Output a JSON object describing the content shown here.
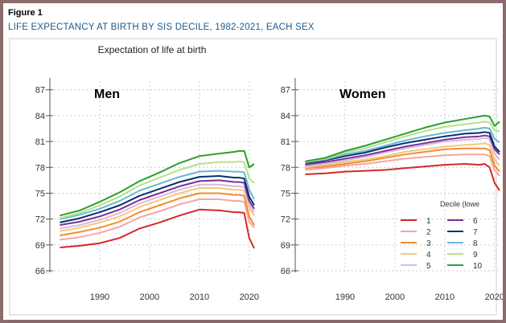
{
  "figure_label": "Figure 1",
  "figure_title": "LIFE EXPECTANCY AT BIRTH BY SIS DECILE, 1982-2021, EACH SEX",
  "chart_data": {
    "type": "line",
    "title": "Expectation of life at birth",
    "ylabel": "Expectation of life at birth",
    "xlabel": "",
    "xlim": [
      1980,
      2021
    ],
    "ylim": [
      66,
      88
    ],
    "yticks": [
      66,
      69,
      72,
      75,
      78,
      81,
      84,
      87
    ],
    "xticks": [
      1990,
      2000,
      2010,
      2020
    ],
    "legend_title": "Decile (lowe",
    "colors": [
      "#d62728",
      "#f4a6a6",
      "#f28e2b",
      "#f6c87a",
      "#d9b8e6",
      "#7b3294",
      "#08306b",
      "#6bb7d6",
      "#b8e08a",
      "#2ca02c"
    ],
    "panels": [
      {
        "name": "Men",
        "years": [
          1982,
          1986,
          1990,
          1994,
          1998,
          2002,
          2006,
          2010,
          2014,
          2017,
          2018,
          2019,
          2020,
          2021
        ],
        "series": [
          {
            "name": "1",
            "values": [
              68.7,
              68.9,
              69.2,
              69.8,
              70.9,
              71.6,
              72.4,
              73.1,
              73.0,
              72.8,
              72.8,
              72.7,
              69.8,
              68.6
            ]
          },
          {
            "name": "2",
            "values": [
              69.6,
              69.9,
              70.4,
              71.1,
              72.2,
              72.9,
              73.7,
              74.3,
              74.3,
              74.1,
              74.1,
              74.0,
              71.7,
              71.0
            ]
          },
          {
            "name": "3",
            "values": [
              70.1,
              70.5,
              71.0,
              71.7,
              72.8,
              73.6,
              74.4,
              75.0,
              75.0,
              74.8,
              74.8,
              74.7,
              72.3,
              71.3
            ]
          },
          {
            "name": "4",
            "values": [
              70.6,
              71.0,
              71.6,
              72.3,
              73.4,
              74.2,
              75.0,
              75.6,
              75.6,
              75.4,
              75.4,
              75.3,
              73.3,
              72.4
            ]
          },
          {
            "name": "5",
            "values": [
              70.9,
              71.3,
              71.9,
              72.7,
              73.8,
              74.6,
              75.4,
              76.0,
              76.0,
              75.8,
              75.8,
              75.7,
              73.7,
              72.8
            ]
          },
          {
            "name": "6",
            "values": [
              71.3,
              71.7,
              72.3,
              73.1,
              74.2,
              75.0,
              75.8,
              76.4,
              76.5,
              76.3,
              76.3,
              76.2,
              74.1,
              73.2
            ]
          },
          {
            "name": "7",
            "values": [
              71.6,
              72.1,
              72.8,
              73.6,
              74.7,
              75.5,
              76.3,
              76.9,
              77.0,
              76.8,
              76.8,
              76.7,
              74.6,
              73.6
            ]
          },
          {
            "name": "8",
            "values": [
              72.0,
              72.5,
              73.2,
              74.1,
              75.3,
              76.1,
              76.9,
              77.5,
              77.6,
              77.5,
              77.5,
              77.4,
              75.4,
              74.3
            ]
          },
          {
            "name": "9",
            "values": [
              72.1,
              72.7,
              73.6,
              74.6,
              75.9,
              76.8,
              77.7,
              78.4,
              78.6,
              78.6,
              78.7,
              78.6,
              76.7,
              76.2
            ]
          },
          {
            "name": "10",
            "values": [
              72.4,
              73.0,
              74.0,
              75.1,
              76.4,
              77.4,
              78.5,
              79.3,
              79.6,
              79.8,
              79.9,
              79.9,
              78.0,
              78.4
            ]
          }
        ]
      },
      {
        "name": "Women",
        "years": [
          1982,
          1986,
          1990,
          1994,
          1998,
          2002,
          2006,
          2010,
          2014,
          2017,
          2018,
          2019,
          2020,
          2021
        ],
        "series": [
          {
            "name": "1",
            "values": [
              77.2,
              77.3,
              77.5,
              77.6,
              77.7,
              77.9,
              78.1,
              78.3,
              78.4,
              78.3,
              78.4,
              78.0,
              76.2,
              75.3
            ]
          },
          {
            "name": "2",
            "values": [
              77.7,
              77.9,
              78.2,
              78.4,
              78.7,
              79.0,
              79.2,
              79.4,
              79.5,
              79.5,
              79.5,
              79.3,
              77.7,
              77.0
            ]
          },
          {
            "name": "3",
            "values": [
              77.9,
              78.1,
              78.4,
              78.7,
              79.1,
              79.5,
              79.8,
              80.1,
              80.2,
              80.2,
              80.2,
              80.0,
              78.2,
              77.5
            ]
          },
          {
            "name": "4",
            "values": [
              78.0,
              78.3,
              78.6,
              78.9,
              79.3,
              79.8,
              80.1,
              80.4,
              80.6,
              80.7,
              80.8,
              80.6,
              78.9,
              78.2
            ]
          },
          {
            "name": "5",
            "values": [
              78.1,
              78.4,
              78.8,
              79.2,
              79.7,
              80.2,
              80.6,
              81.0,
              81.2,
              81.3,
              81.4,
              81.3,
              79.6,
              78.9
            ]
          },
          {
            "name": "6",
            "values": [
              78.3,
              78.6,
              79.0,
              79.4,
              79.9,
              80.4,
              80.8,
              81.2,
              81.5,
              81.6,
              81.7,
              81.6,
              80.1,
              79.5
            ]
          },
          {
            "name": "7",
            "values": [
              78.5,
              78.8,
              79.3,
              79.7,
              80.3,
              80.8,
              81.2,
              81.6,
              81.9,
              82.0,
              82.1,
              82.0,
              80.4,
              79.8
            ]
          },
          {
            "name": "8",
            "values": [
              78.6,
              78.9,
              79.5,
              79.9,
              80.5,
              81.1,
              81.6,
              82.0,
              82.3,
              82.5,
              82.6,
              82.5,
              81.3,
              80.9
            ]
          },
          {
            "name": "9",
            "values": [
              78.6,
              79.0,
              79.7,
              80.2,
              80.9,
              81.6,
              82.2,
              82.7,
              83.0,
              83.2,
              83.3,
              83.2,
              82.3,
              82.2
            ]
          },
          {
            "name": "10",
            "values": [
              78.7,
              79.1,
              79.9,
              80.5,
              81.2,
              81.9,
              82.6,
              83.2,
              83.6,
              83.9,
              84.0,
              83.9,
              82.8,
              83.3
            ]
          }
        ]
      }
    ]
  }
}
